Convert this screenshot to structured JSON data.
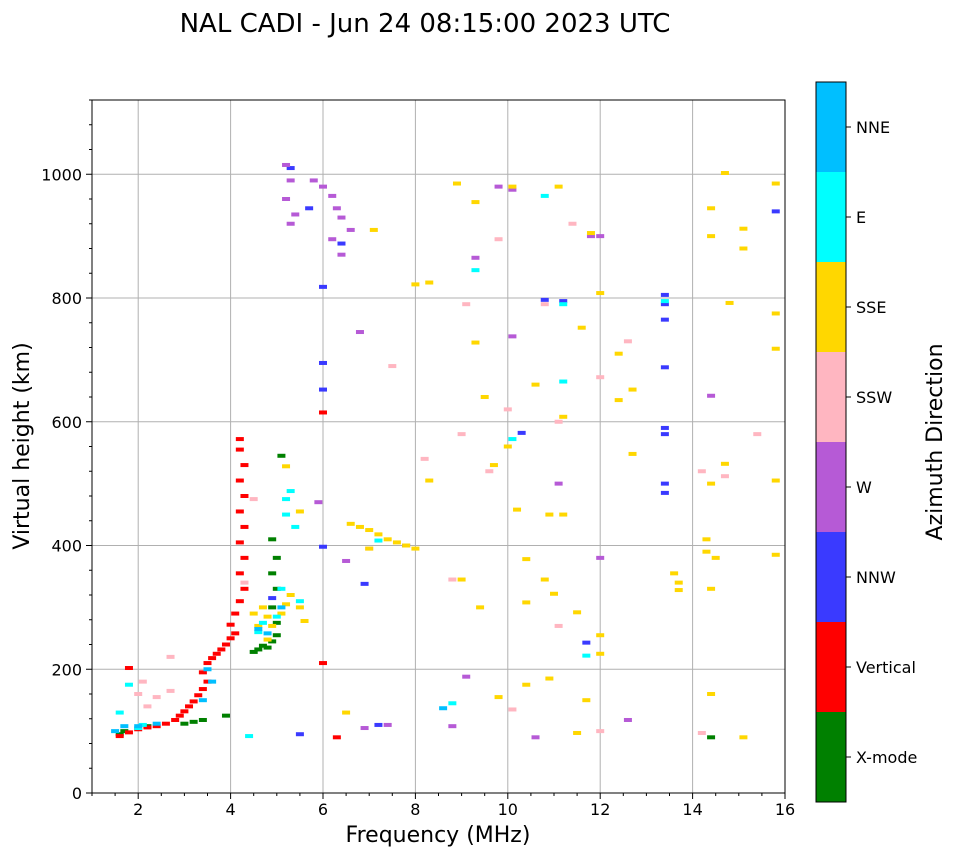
{
  "chart_data": {
    "type": "scatter",
    "title": "NAL CADI - Jun 24 08:15:00 2023 UTC",
    "xlabel": "Frequency (MHz)",
    "ylabel": "Virtual height (km)",
    "xlim": [
      1,
      16
    ],
    "ylim": [
      0,
      1120
    ],
    "xticks": [
      2,
      4,
      6,
      8,
      10,
      12,
      14,
      16
    ],
    "yticks": [
      0,
      200,
      400,
      600,
      800,
      1000
    ],
    "grid": true,
    "colorbar": {
      "title": "Azimuth Direction",
      "categories": [
        {
          "name": "X-mode",
          "color": "#008000"
        },
        {
          "name": "Vertical",
          "color": "#ff0000"
        },
        {
          "name": "NNW",
          "color": "#3a3aff"
        },
        {
          "name": "W",
          "color": "#b65ad6"
        },
        {
          "name": "SSW",
          "color": "#ffb6c1"
        },
        {
          "name": "SSE",
          "color": "#ffd700"
        },
        {
          "name": "E",
          "color": "#00ffff"
        },
        {
          "name": "NNE",
          "color": "#00bfff"
        }
      ]
    },
    "series": [
      {
        "name": "X-mode",
        "points": [
          [
            1.6,
            95
          ],
          [
            1.7,
            100
          ],
          [
            2.2,
            108
          ],
          [
            3.0,
            112
          ],
          [
            3.2,
            115
          ],
          [
            3.4,
            118
          ],
          [
            3.9,
            125
          ],
          [
            4.5,
            228
          ],
          [
            4.6,
            232
          ],
          [
            4.7,
            238
          ],
          [
            4.8,
            235
          ],
          [
            4.9,
            245
          ],
          [
            5.0,
            255
          ],
          [
            5.0,
            275
          ],
          [
            4.9,
            300
          ],
          [
            5.0,
            330
          ],
          [
            4.9,
            355
          ],
          [
            5.0,
            380
          ],
          [
            4.9,
            410
          ],
          [
            5.1,
            545
          ],
          [
            14.4,
            90
          ]
        ]
      },
      {
        "name": "Vertical",
        "points": [
          [
            1.6,
            92
          ],
          [
            1.8,
            98
          ],
          [
            2.0,
            103
          ],
          [
            2.2,
            106
          ],
          [
            2.4,
            108
          ],
          [
            2.6,
            112
          ],
          [
            2.8,
            118
          ],
          [
            2.9,
            125
          ],
          [
            3.0,
            132
          ],
          [
            3.1,
            140
          ],
          [
            3.2,
            148
          ],
          [
            3.3,
            158
          ],
          [
            3.4,
            168
          ],
          [
            3.5,
            180
          ],
          [
            3.4,
            195
          ],
          [
            3.5,
            210
          ],
          [
            3.6,
            218
          ],
          [
            3.7,
            225
          ],
          [
            3.8,
            232
          ],
          [
            3.9,
            240
          ],
          [
            4.0,
            250
          ],
          [
            4.1,
            258
          ],
          [
            4.0,
            272
          ],
          [
            4.1,
            290
          ],
          [
            4.2,
            310
          ],
          [
            4.3,
            330
          ],
          [
            4.2,
            355
          ],
          [
            4.3,
            380
          ],
          [
            4.2,
            405
          ],
          [
            4.3,
            430
          ],
          [
            4.2,
            455
          ],
          [
            4.3,
            480
          ],
          [
            4.2,
            505
          ],
          [
            4.3,
            530
          ],
          [
            4.2,
            555
          ],
          [
            4.2,
            572
          ],
          [
            6.3,
            90
          ],
          [
            6.0,
            210
          ],
          [
            6.0,
            615
          ],
          [
            1.8,
            202
          ]
        ]
      },
      {
        "name": "NNW",
        "points": [
          [
            5.3,
            1010
          ],
          [
            5.7,
            945
          ],
          [
            6.4,
            888
          ],
          [
            6.0,
            818
          ],
          [
            6.0,
            695
          ],
          [
            6.0,
            652
          ],
          [
            6.0,
            398
          ],
          [
            7.8,
            400
          ],
          [
            6.9,
            338
          ],
          [
            13.4,
            805
          ],
          [
            13.4,
            790
          ],
          [
            13.4,
            765
          ],
          [
            13.4,
            688
          ],
          [
            13.4,
            590
          ],
          [
            13.4,
            580
          ],
          [
            13.4,
            500
          ],
          [
            13.4,
            485
          ],
          [
            15.8,
            940
          ],
          [
            11.2,
            795
          ],
          [
            10.8,
            797
          ],
          [
            10.3,
            582
          ],
          [
            11.7,
            243
          ],
          [
            7.2,
            110
          ],
          [
            5.5,
            95
          ],
          [
            4.9,
            315
          ]
        ]
      },
      {
        "name": "W",
        "points": [
          [
            5.2,
            1015
          ],
          [
            5.3,
            990
          ],
          [
            5.2,
            960
          ],
          [
            5.4,
            935
          ],
          [
            5.3,
            920
          ],
          [
            5.8,
            990
          ],
          [
            6.0,
            980
          ],
          [
            6.2,
            965
          ],
          [
            6.3,
            945
          ],
          [
            6.4,
            930
          ],
          [
            6.6,
            910
          ],
          [
            6.2,
            895
          ],
          [
            6.4,
            870
          ],
          [
            6.8,
            745
          ],
          [
            6.5,
            375
          ],
          [
            5.9,
            470
          ],
          [
            9.3,
            865
          ],
          [
            9.8,
            980
          ],
          [
            10.1,
            975
          ],
          [
            10.1,
            738
          ],
          [
            11.8,
            900
          ],
          [
            12.0,
            900
          ],
          [
            11.1,
            500
          ],
          [
            9.1,
            188
          ],
          [
            8.8,
            108
          ],
          [
            10.6,
            90
          ],
          [
            12.6,
            118
          ],
          [
            14.4,
            642
          ],
          [
            12.0,
            380
          ],
          [
            6.9,
            105
          ],
          [
            7.4,
            110
          ]
        ]
      },
      {
        "name": "SSW",
        "points": [
          [
            2.7,
            220
          ],
          [
            2.7,
            165
          ],
          [
            2.4,
            155
          ],
          [
            2.2,
            140
          ],
          [
            2.1,
            180
          ],
          [
            2.0,
            160
          ],
          [
            4.3,
            340
          ],
          [
            4.5,
            475
          ],
          [
            7.5,
            690
          ],
          [
            8.2,
            540
          ],
          [
            8.8,
            345
          ],
          [
            9.0,
            580
          ],
          [
            9.1,
            790
          ],
          [
            9.6,
            520
          ],
          [
            9.8,
            895
          ],
          [
            10.0,
            620
          ],
          [
            10.1,
            135
          ],
          [
            10.8,
            790
          ],
          [
            11.1,
            600
          ],
          [
            11.1,
            270
          ],
          [
            11.4,
            920
          ],
          [
            12.0,
            100
          ],
          [
            12.0,
            672
          ],
          [
            12.6,
            730
          ],
          [
            14.2,
            520
          ],
          [
            14.2,
            97
          ],
          [
            14.7,
            512
          ],
          [
            15.4,
            580
          ],
          [
            7.0,
            395
          ]
        ]
      },
      {
        "name": "SSE",
        "points": [
          [
            4.6,
            270
          ],
          [
            4.5,
            290
          ],
          [
            4.7,
            300
          ],
          [
            4.8,
            285
          ],
          [
            4.9,
            270
          ],
          [
            5.1,
            290
          ],
          [
            5.2,
            305
          ],
          [
            5.3,
            320
          ],
          [
            5.5,
            300
          ],
          [
            5.6,
            278
          ],
          [
            4.8,
            248
          ],
          [
            5.2,
            528
          ],
          [
            5.5,
            455
          ],
          [
            6.5,
            130
          ],
          [
            6.6,
            435
          ],
          [
            6.8,
            430
          ],
          [
            7.0,
            425
          ],
          [
            7.2,
            418
          ],
          [
            7.4,
            410
          ],
          [
            7.6,
            405
          ],
          [
            7.8,
            400
          ],
          [
            8.0,
            395
          ],
          [
            7.0,
            395
          ],
          [
            7.1,
            910
          ],
          [
            8.0,
            822
          ],
          [
            8.3,
            825
          ],
          [
            8.3,
            505
          ],
          [
            8.9,
            985
          ],
          [
            9.0,
            345
          ],
          [
            9.3,
            955
          ],
          [
            9.3,
            728
          ],
          [
            9.4,
            300
          ],
          [
            9.5,
            640
          ],
          [
            9.7,
            530
          ],
          [
            9.8,
            155
          ],
          [
            10.0,
            560
          ],
          [
            10.1,
            980
          ],
          [
            10.2,
            458
          ],
          [
            10.4,
            378
          ],
          [
            10.4,
            308
          ],
          [
            10.4,
            175
          ],
          [
            10.6,
            660
          ],
          [
            10.8,
            345
          ],
          [
            10.9,
            185
          ],
          [
            10.9,
            450
          ],
          [
            11.0,
            322
          ],
          [
            11.1,
            980
          ],
          [
            11.2,
            450
          ],
          [
            11.2,
            608
          ],
          [
            11.5,
            292
          ],
          [
            11.6,
            752
          ],
          [
            11.7,
            150
          ],
          [
            11.8,
            905
          ],
          [
            12.0,
            255
          ],
          [
            12.0,
            808
          ],
          [
            12.0,
            225
          ],
          [
            12.4,
            710
          ],
          [
            12.4,
            635
          ],
          [
            12.7,
            652
          ],
          [
            12.7,
            548
          ],
          [
            13.6,
            355
          ],
          [
            13.7,
            340
          ],
          [
            13.7,
            328
          ],
          [
            14.3,
            410
          ],
          [
            14.3,
            390
          ],
          [
            14.4,
            945
          ],
          [
            14.4,
            900
          ],
          [
            14.4,
            500
          ],
          [
            14.5,
            380
          ],
          [
            14.4,
            330
          ],
          [
            14.4,
            160
          ],
          [
            14.7,
            1002
          ],
          [
            14.8,
            792
          ],
          [
            14.7,
            532
          ],
          [
            15.1,
            912
          ],
          [
            15.1,
            880
          ],
          [
            15.1,
            90
          ],
          [
            15.8,
            985
          ],
          [
            15.8,
            775
          ],
          [
            15.8,
            718
          ],
          [
            15.8,
            505
          ],
          [
            15.8,
            385
          ],
          [
            11.5,
            97
          ]
        ]
      },
      {
        "name": "E",
        "points": [
          [
            1.6,
            130
          ],
          [
            1.8,
            175
          ],
          [
            2.0,
            105
          ],
          [
            2.1,
            110
          ],
          [
            4.4,
            92
          ],
          [
            4.6,
            260
          ],
          [
            4.7,
            275
          ],
          [
            5.1,
            330
          ],
          [
            5.2,
            475
          ],
          [
            5.3,
            488
          ],
          [
            5.2,
            450
          ],
          [
            5.4,
            430
          ],
          [
            5.0,
            285
          ],
          [
            5.5,
            310
          ],
          [
            7.2,
            408
          ],
          [
            8.8,
            145
          ],
          [
            9.3,
            845
          ],
          [
            10.1,
            572
          ],
          [
            10.8,
            965
          ],
          [
            11.2,
            665
          ],
          [
            11.2,
            790
          ],
          [
            11.7,
            222
          ],
          [
            13.4,
            795
          ]
        ]
      },
      {
        "name": "NNE",
        "points": [
          [
            1.5,
            100
          ],
          [
            1.7,
            108
          ],
          [
            2.0,
            108
          ],
          [
            2.4,
            112
          ],
          [
            3.5,
            200
          ],
          [
            3.6,
            180
          ],
          [
            3.4,
            150
          ],
          [
            4.6,
            265
          ],
          [
            4.8,
            258
          ],
          [
            5.1,
            300
          ],
          [
            8.6,
            137
          ]
        ]
      }
    ]
  }
}
